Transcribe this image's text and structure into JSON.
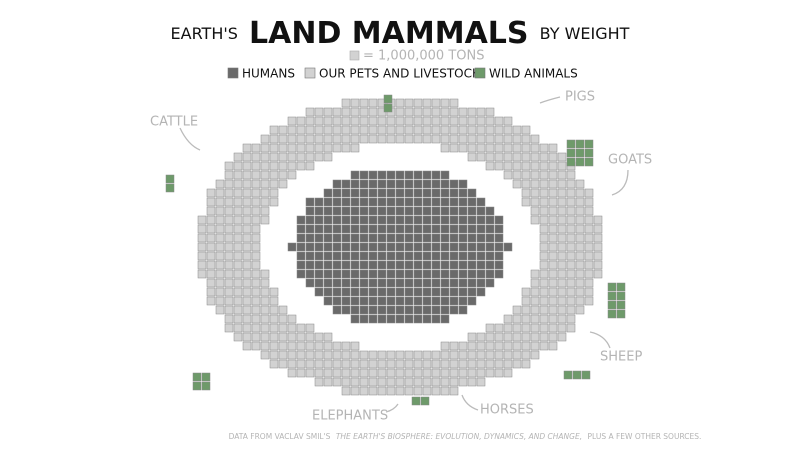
{
  "chart_data": {
    "type": "waffle",
    "title_prefix": "EARTH'S",
    "title": "LAND MAMMALS",
    "title_suffix": "BY WEIGHT",
    "unit_label": "= 1,000,000 TONS",
    "series": [
      {
        "name": "HUMANS",
        "color": "#6a6a6a",
        "values": [
          330
        ]
      },
      {
        "name": "OUR PETS AND LIVESTOCK",
        "color": "#d2d2d2",
        "values": [
          630
        ]
      },
      {
        "name": "WILD ANIMALS",
        "color": "#6e9a6a",
        "values": [
          30
        ]
      }
    ],
    "annotations": [
      "CATTLE",
      "PIGS",
      "GOATS",
      "SHEEP",
      "HORSES",
      "ELEPHANTS"
    ],
    "source": [
      "DATA FROM VACLAV SMIL'S",
      "THE EARTH'S BIOSPHERE: EVOLUTION, DYNAMICS, AND CHANGE,",
      "PLUS A FEW OTHER SOURCES."
    ]
  }
}
